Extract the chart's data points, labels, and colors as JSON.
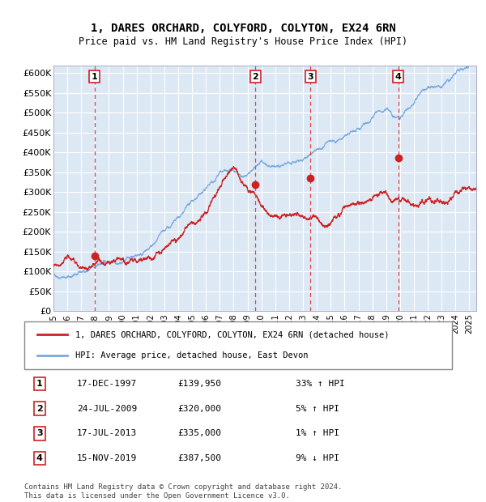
{
  "title": "1, DARES ORCHARD, COLYFORD, COLYTON, EX24 6RN",
  "subtitle": "Price paid vs. HM Land Registry's House Price Index (HPI)",
  "bg_color": "#dde8f5",
  "plot_bg_color": "#dde8f5",
  "hpi_color": "#7aaadd",
  "price_color": "#cc2222",
  "sale_marker_color": "#cc2222",
  "dashed_line_color": "#dd4444",
  "ylim": [
    0,
    620000
  ],
  "yticks": [
    0,
    50000,
    100000,
    150000,
    200000,
    250000,
    300000,
    350000,
    400000,
    450000,
    500000,
    550000,
    600000
  ],
  "ytick_labels": [
    "£0",
    "£50K",
    "£100K",
    "£150K",
    "£200K",
    "£250K",
    "£300K",
    "£350K",
    "£400K",
    "£450K",
    "£500K",
    "£550K",
    "£600K"
  ],
  "xlim_start": 1995.0,
  "xlim_end": 2025.5,
  "xticks": [
    1995,
    1996,
    1997,
    1998,
    1999,
    2000,
    2001,
    2002,
    2003,
    2004,
    2005,
    2006,
    2007,
    2008,
    2009,
    2010,
    2011,
    2012,
    2013,
    2014,
    2015,
    2016,
    2017,
    2018,
    2019,
    2020,
    2021,
    2022,
    2023,
    2024,
    2025
  ],
  "sales": [
    {
      "num": 1,
      "date": "17-DEC-1997",
      "year": 1997.96,
      "price": 139950,
      "pct": "33%",
      "dir": "↑"
    },
    {
      "num": 2,
      "date": "24-JUL-2009",
      "year": 2009.56,
      "price": 320000,
      "pct": "5%",
      "dir": "↑"
    },
    {
      "num": 3,
      "date": "17-JUL-2013",
      "year": 2013.54,
      "price": 335000,
      "pct": "1%",
      "dir": "↑"
    },
    {
      "num": 4,
      "date": "15-NOV-2019",
      "year": 2019.87,
      "price": 387500,
      "pct": "9%",
      "dir": "↓"
    }
  ],
  "legend_label_red": "1, DARES ORCHARD, COLYFORD, COLYTON, EX24 6RN (detached house)",
  "legend_label_blue": "HPI: Average price, detached house, East Devon",
  "footer": "Contains HM Land Registry data © Crown copyright and database right 2024.\nThis data is licensed under the Open Government Licence v3.0."
}
